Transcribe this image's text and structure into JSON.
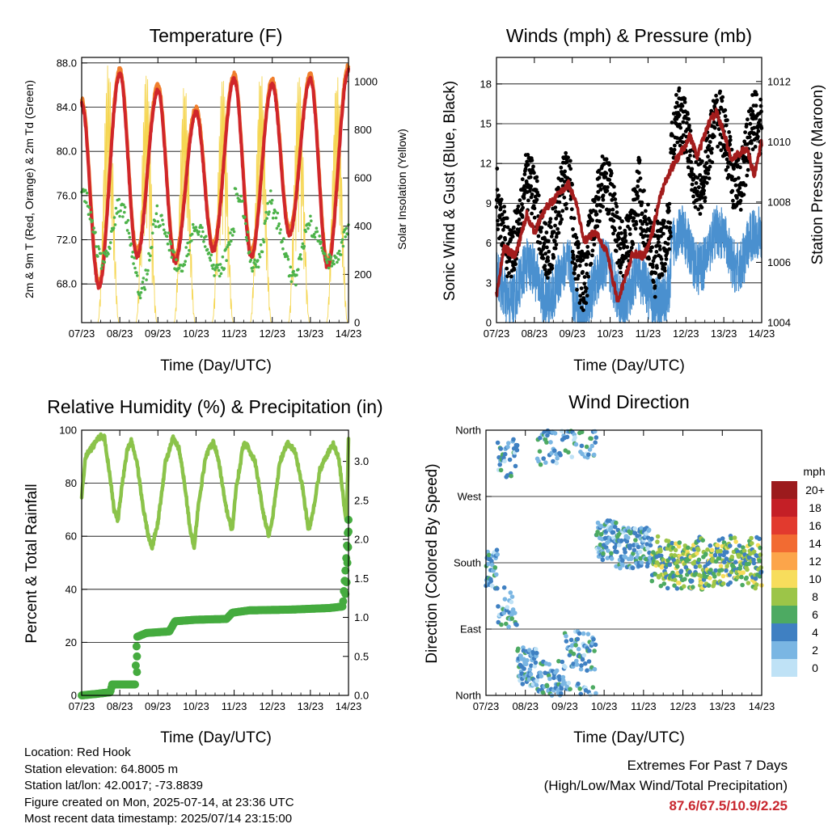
{
  "colors": {
    "temp_2m": "#d0262a",
    "temp_9m": "#f07e2c",
    "dewpoint": "#4db34a",
    "solar": "#f5d652",
    "gust": "#000000",
    "wind": "#4a90cf",
    "pressure": "#a31c1c",
    "rh": "#8bc34a",
    "precip": "#45ab3f"
  },
  "x_axis": {
    "tick_labels": [
      "07/23",
      "08/23",
      "09/23",
      "10/23",
      "11/23",
      "12/23",
      "13/23",
      "14/23"
    ],
    "xlabel": "Time (Day/UTC)"
  },
  "chart_data": [
    {
      "type": "line",
      "title": "Temperature (F)",
      "xlabel": "Time (Day/UTC)",
      "ylabel": "2m & 9m T (Red, Orange) & 2m Td (Green)",
      "y2label": "Solar Insolation (Yellow)",
      "ylim": [
        64.5,
        88.5
      ],
      "yticks": [
        68.0,
        72.0,
        76.0,
        80.0,
        84.0,
        88.0
      ],
      "ytick_labels": [
        "68.0",
        "72.0",
        "76.0",
        "80.0",
        "84.0",
        "88.0"
      ],
      "y2lim": [
        0,
        1100
      ],
      "y2ticks": [
        0,
        200,
        400,
        600,
        800,
        1000
      ],
      "grid": true,
      "series": [
        {
          "key": "t2m",
          "color": "#d0262a",
          "daily_high": [
            84.3,
            87.0,
            85.5,
            83.5,
            86.5,
            86.0,
            86.5,
            87.3
          ],
          "daily_low": [
            72.0,
            67.7,
            70.5,
            70.0,
            71.0,
            70.5,
            72.5,
            69.5
          ]
        },
        {
          "key": "t9m",
          "color": "#f07e2c"
        },
        {
          "key": "td2m",
          "color": "#4db34a",
          "daily_high": [
            75.8,
            74.8,
            73.5,
            73.0,
            76.5,
            74.0,
            73.0,
            74.8
          ],
          "daily_low": [
            70.0,
            67.5,
            69.5,
            69.0,
            69.5,
            68.5,
            70.0,
            68.5
          ]
        },
        {
          "key": "solar",
          "color": "#f5d652",
          "daily_peak": [
            0,
            1080,
            1050,
            1000,
            1030,
            1050,
            1040,
            1030
          ]
        }
      ]
    },
    {
      "type": "line",
      "title": "Winds (mph) & Pressure (mb)",
      "xlabel": "Time (Day/UTC)",
      "ylabel": "Sonic Wind & Gust (Blue, Black)",
      "y2label": "Station Pressure (Maroon)",
      "ylim": [
        0,
        20
      ],
      "yticks": [
        0,
        3,
        6,
        9,
        12,
        15,
        18
      ],
      "y2lim": [
        1004,
        1012.8
      ],
      "y2ticks": [
        1004,
        1006,
        1008,
        1010,
        1012
      ],
      "grid": true,
      "pressure": [
        [
          0,
          1004.9
        ],
        [
          0.2,
          1006.5
        ],
        [
          0.5,
          1006.2
        ],
        [
          0.8,
          1007.6
        ],
        [
          1.0,
          1007.0
        ],
        [
          1.3,
          1007.8
        ],
        [
          1.6,
          1008.2
        ],
        [
          1.9,
          1008.6
        ],
        [
          2.1,
          1008.0
        ],
        [
          2.3,
          1006.7
        ],
        [
          2.6,
          1007.0
        ],
        [
          2.9,
          1006.4
        ],
        [
          3.2,
          1004.7
        ],
        [
          3.4,
          1005.5
        ],
        [
          3.6,
          1006.3
        ],
        [
          3.9,
          1006.2
        ],
        [
          4.1,
          1006.9
        ],
        [
          4.3,
          1008.1
        ],
        [
          4.5,
          1008.8
        ],
        [
          4.7,
          1009.3
        ],
        [
          4.9,
          1009.7
        ],
        [
          5.1,
          1010.2
        ],
        [
          5.3,
          1009.5
        ],
        [
          5.6,
          1010.6
        ],
        [
          5.8,
          1011.0
        ],
        [
          6.0,
          1010.3
        ],
        [
          6.2,
          1009.4
        ],
        [
          6.4,
          1009.6
        ],
        [
          6.6,
          1009.8
        ],
        [
          6.8,
          1008.9
        ],
        [
          7.0,
          1010.0
        ]
      ]
    },
    {
      "type": "line",
      "title": "Relative Humidity (%) & Precipitation (in)",
      "xlabel": "Time (Day/UTC)",
      "ylabel": "Percent & Total Rainfall",
      "ylim": [
        0,
        100
      ],
      "yticks": [
        0,
        20,
        40,
        60,
        80,
        100
      ],
      "y2lim": [
        0,
        3.4
      ],
      "y2ticks": [
        0.0,
        0.5,
        1.0,
        1.5,
        2.0,
        2.5,
        3.0
      ],
      "y2tick_labels": [
        "0.0",
        "0.5",
        "1.0",
        "1.5",
        "2.0",
        "2.5",
        "3.0"
      ],
      "grid": true,
      "rh": [
        [
          0,
          75
        ],
        [
          0.1,
          90
        ],
        [
          0.3,
          94
        ],
        [
          0.5,
          98
        ],
        [
          0.6,
          97
        ],
        [
          0.75,
          82
        ],
        [
          0.85,
          70
        ],
        [
          0.95,
          66
        ],
        [
          1.05,
          78
        ],
        [
          1.2,
          93
        ],
        [
          1.3,
          96
        ],
        [
          1.45,
          88
        ],
        [
          1.6,
          72
        ],
        [
          1.75,
          60
        ],
        [
          1.85,
          56
        ],
        [
          2.0,
          65
        ],
        [
          2.2,
          88
        ],
        [
          2.4,
          97
        ],
        [
          2.55,
          93
        ],
        [
          2.7,
          80
        ],
        [
          2.85,
          62
        ],
        [
          2.95,
          56
        ],
        [
          3.05,
          70
        ],
        [
          3.25,
          90
        ],
        [
          3.45,
          96
        ],
        [
          3.6,
          88
        ],
        [
          3.8,
          70
        ],
        [
          3.95,
          62
        ],
        [
          4.05,
          78
        ],
        [
          4.25,
          95
        ],
        [
          4.35,
          94
        ],
        [
          4.55,
          88
        ],
        [
          4.75,
          70
        ],
        [
          4.9,
          60
        ],
        [
          5.0,
          66
        ],
        [
          5.2,
          88
        ],
        [
          5.4,
          95
        ],
        [
          5.6,
          92
        ],
        [
          5.8,
          78
        ],
        [
          5.95,
          62
        ],
        [
          6.05,
          68
        ],
        [
          6.25,
          85
        ],
        [
          6.45,
          91
        ],
        [
          6.6,
          95
        ],
        [
          6.75,
          89
        ],
        [
          6.9,
          70
        ],
        [
          6.95,
          66
        ],
        [
          7.0,
          96
        ]
      ],
      "precip": [
        [
          0,
          0
        ],
        [
          0.4,
          0.02
        ],
        [
          0.75,
          0.04
        ],
        [
          0.8,
          0.14
        ],
        [
          1.4,
          0.14
        ],
        [
          1.45,
          0.75
        ],
        [
          1.7,
          0.8
        ],
        [
          2.3,
          0.82
        ],
        [
          2.45,
          0.95
        ],
        [
          3.0,
          0.97
        ],
        [
          3.8,
          0.98
        ],
        [
          3.95,
          1.06
        ],
        [
          4.4,
          1.09
        ],
        [
          5.5,
          1.1
        ],
        [
          6.5,
          1.12
        ],
        [
          6.85,
          1.14
        ],
        [
          6.92,
          1.6
        ],
        [
          6.97,
          2.0
        ],
        [
          7.0,
          2.25
        ]
      ]
    },
    {
      "type": "scatter",
      "title": "Wind Direction",
      "xlabel": "Time (Day/UTC)",
      "ylabel": "Direction (Colored By Speed)",
      "yticks": [
        0,
        90,
        180,
        270,
        360
      ],
      "ytick_labels": [
        "North",
        "East",
        "South",
        "West",
        "North"
      ],
      "ylim": [
        0,
        360
      ],
      "grid": true,
      "legend_placement": "right",
      "legend_title": "mph",
      "legend_levels": [
        "20+",
        "18",
        "16",
        "14",
        "12",
        "10",
        "8",
        "6",
        "4",
        "2",
        "0"
      ],
      "legend_colors": [
        "#9c1b1d",
        "#c41f26",
        "#e23a2e",
        "#f26b32",
        "#fca54a",
        "#f7dd5c",
        "#9cc548",
        "#4daa62",
        "#3f80c2",
        "#7ab6e3",
        "#bfe2f6"
      ]
    }
  ],
  "footer": {
    "location": "Location: Red Hook",
    "elevation": "Station elevation: 64.8005 m",
    "latlon": "Station lat/lon: 42.0017; -73.8839",
    "created": "Figure created on Mon, 2025-07-14, at 23:36 UTC",
    "recent": "Most recent data timestamp: 2025/07/14 23:15:00"
  },
  "extremes": {
    "title": "Extremes For Past 7 Days",
    "subtitle": "(High/Low/Max Wind/Total Precipitation)",
    "values": "87.6/67.5/10.9/2.25"
  }
}
